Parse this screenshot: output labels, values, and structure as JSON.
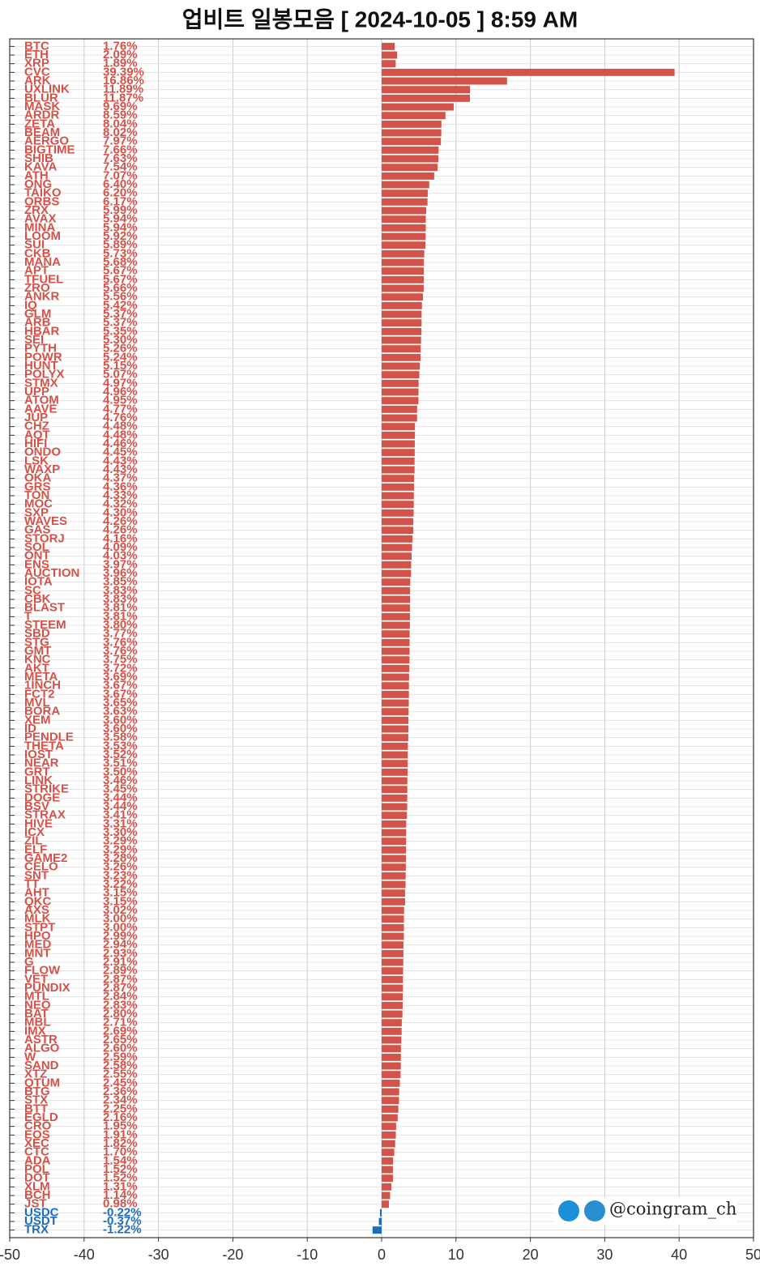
{
  "chart_data": {
    "type": "hbar",
    "title": "업비트 일봉모음 [ 2024-10-05 ]  8:59 AM",
    "watermark": "@coingram_ch",
    "color": "#d2534a",
    "negative_color": "#1f6cb8",
    "xlim": [
      -50,
      50
    ],
    "xticks": [
      -50,
      -40,
      -30,
      -20,
      -10,
      0,
      10,
      20,
      30,
      40,
      50
    ],
    "grid": true,
    "categories": [
      "BTC",
      "ETH",
      "XRP",
      "CVC",
      "ARK",
      "UXLINK",
      "BLUR",
      "MASK",
      "ARDR",
      "ZETA",
      "BEAM",
      "AERGO",
      "BIGTIME",
      "SHIB",
      "KAVA",
      "ATH",
      "ONG",
      "TAIKO",
      "ORBS",
      "ZRX",
      "AVAX",
      "MINA",
      "LOOM",
      "SUI",
      "CKB",
      "MANA",
      "APT",
      "TFUEL",
      "ZRO",
      "ANKR",
      "IQ",
      "GLM",
      "ARB",
      "HBAR",
      "SEI",
      "PYTH",
      "POWR",
      "HUNT",
      "POLYX",
      "STMX",
      "UPP",
      "ATOM",
      "AAVE",
      "JUP",
      "CHZ",
      "AQT",
      "HIFI",
      "ONDO",
      "LSK",
      "WAXP",
      "OKA",
      "GRS",
      "TON",
      "MOC",
      "SXP",
      "WAVES",
      "GAS",
      "STORJ",
      "SOL",
      "ONT",
      "ENS",
      "AUCTION",
      "IOTA",
      "SC",
      "CBK",
      "BLAST",
      "T",
      "STEEM",
      "SBD",
      "STG",
      "GMT",
      "KNC",
      "AKT",
      "META",
      "1INCH",
      "FCT2",
      "MVL",
      "BORA",
      "XEM",
      "ID",
      "PENDLE",
      "THETA",
      "IOST",
      "NEAR",
      "GRT",
      "LINK",
      "STRIKE",
      "DOGE",
      "BSV",
      "STRAX",
      "HIVE",
      "ICX",
      "ZIL",
      "ELF",
      "GAME2",
      "CELO",
      "SNT",
      "TT",
      "AHT",
      "QKC",
      "AXS",
      "MLK",
      "STPT",
      "HPO",
      "MED",
      "MNT",
      "G",
      "FLOW",
      "VET",
      "PUNDIX",
      "MTL",
      "NEO",
      "BAT",
      "MBL",
      "IMX",
      "ASTR",
      "ALGO",
      "W",
      "SAND",
      "XTZ",
      "QTUM",
      "BTG",
      "STX",
      "BTT",
      "EGLD",
      "CRO",
      "EOS",
      "XEC",
      "CTC",
      "ADA",
      "POL",
      "DOT",
      "XLM",
      "BCH",
      "JST",
      "USDC",
      "USDT",
      "TRX"
    ],
    "values": [
      1.76,
      2.09,
      1.89,
      39.39,
      16.86,
      11.89,
      11.87,
      9.69,
      8.59,
      8.04,
      8.02,
      7.97,
      7.66,
      7.63,
      7.54,
      7.07,
      6.4,
      6.2,
      6.17,
      5.99,
      5.94,
      5.94,
      5.92,
      5.89,
      5.73,
      5.68,
      5.67,
      5.67,
      5.66,
      5.56,
      5.42,
      5.37,
      5.37,
      5.35,
      5.3,
      5.26,
      5.24,
      5.15,
      5.07,
      4.97,
      4.96,
      4.95,
      4.77,
      4.76,
      4.48,
      4.48,
      4.46,
      4.45,
      4.43,
      4.43,
      4.37,
      4.36,
      4.33,
      4.32,
      4.3,
      4.26,
      4.26,
      4.16,
      4.09,
      4.03,
      3.97,
      3.96,
      3.85,
      3.83,
      3.83,
      3.81,
      3.81,
      3.8,
      3.77,
      3.76,
      3.76,
      3.75,
      3.72,
      3.69,
      3.67,
      3.67,
      3.65,
      3.63,
      3.6,
      3.6,
      3.58,
      3.53,
      3.52,
      3.51,
      3.5,
      3.46,
      3.45,
      3.44,
      3.44,
      3.41,
      3.31,
      3.3,
      3.29,
      3.29,
      3.28,
      3.26,
      3.23,
      3.22,
      3.15,
      3.15,
      3.02,
      3.0,
      3.0,
      2.99,
      2.94,
      2.93,
      2.91,
      2.89,
      2.87,
      2.87,
      2.84,
      2.83,
      2.8,
      2.71,
      2.69,
      2.65,
      2.6,
      2.59,
      2.58,
      2.55,
      2.45,
      2.36,
      2.34,
      2.25,
      2.16,
      1.95,
      1.91,
      1.82,
      1.7,
      1.54,
      1.52,
      1.52,
      1.31,
      1.14,
      0.98,
      -0.22,
      -0.37,
      -1.22
    ],
    "value_labels": [
      "1.76%",
      "2.09%",
      "1.89%",
      "39.39%",
      "16.86%",
      "11.89%",
      "11.87%",
      "9.69%",
      "8.59%",
      "8.04%",
      "8.02%",
      "7.97%",
      "7.66%",
      "7.63%",
      "7.54%",
      "7.07%",
      "6.40%",
      "6.20%",
      "6.17%",
      "5.99%",
      "5.94%",
      "5.94%",
      "5.92%",
      "5.89%",
      "5.73%",
      "5.68%",
      "5.67%",
      "5.67%",
      "5.66%",
      "5.56%",
      "5.42%",
      "5.37%",
      "5.37%",
      "5.35%",
      "5.30%",
      "5.26%",
      "5.24%",
      "5.15%",
      "5.07%",
      "4.97%",
      "4.96%",
      "4.95%",
      "4.77%",
      "4.76%",
      "4.48%",
      "4.48%",
      "4.46%",
      "4.45%",
      "4.43%",
      "4.43%",
      "4.37%",
      "4.36%",
      "4.33%",
      "4.32%",
      "4.30%",
      "4.26%",
      "4.26%",
      "4.16%",
      "4.09%",
      "4.03%",
      "3.97%",
      "3.96%",
      "3.85%",
      "3.83%",
      "3.83%",
      "3.81%",
      "3.81%",
      "3.80%",
      "3.77%",
      "3.76%",
      "3.76%",
      "3.75%",
      "3.72%",
      "3.69%",
      "3.67%",
      "3.67%",
      "3.65%",
      "3.63%",
      "3.60%",
      "3.60%",
      "3.58%",
      "3.53%",
      "3.52%",
      "3.51%",
      "3.50%",
      "3.46%",
      "3.45%",
      "3.44%",
      "3.44%",
      "3.41%",
      "3.31%",
      "3.30%",
      "3.29%",
      "3.29%",
      "3.28%",
      "3.26%",
      "3.23%",
      "3.22%",
      "3.15%",
      "3.15%",
      "3.02%",
      "3.00%",
      "3.00%",
      "2.99%",
      "2.94%",
      "2.93%",
      "2.91%",
      "2.89%",
      "2.87%",
      "2.87%",
      "2.84%",
      "2.83%",
      "2.80%",
      "2.71%",
      "2.69%",
      "2.65%",
      "2.60%",
      "2.59%",
      "2.58%",
      "2.55%",
      "2.45%",
      "2.36%",
      "2.34%",
      "2.25%",
      "2.16%",
      "1.95%",
      "1.91%",
      "1.82%",
      "1.70%",
      "1.54%",
      "1.52%",
      "1.52%",
      "1.31%",
      "1.14%",
      "0.98%",
      "-0.22%",
      "-0.37%",
      "-1.22%"
    ]
  }
}
